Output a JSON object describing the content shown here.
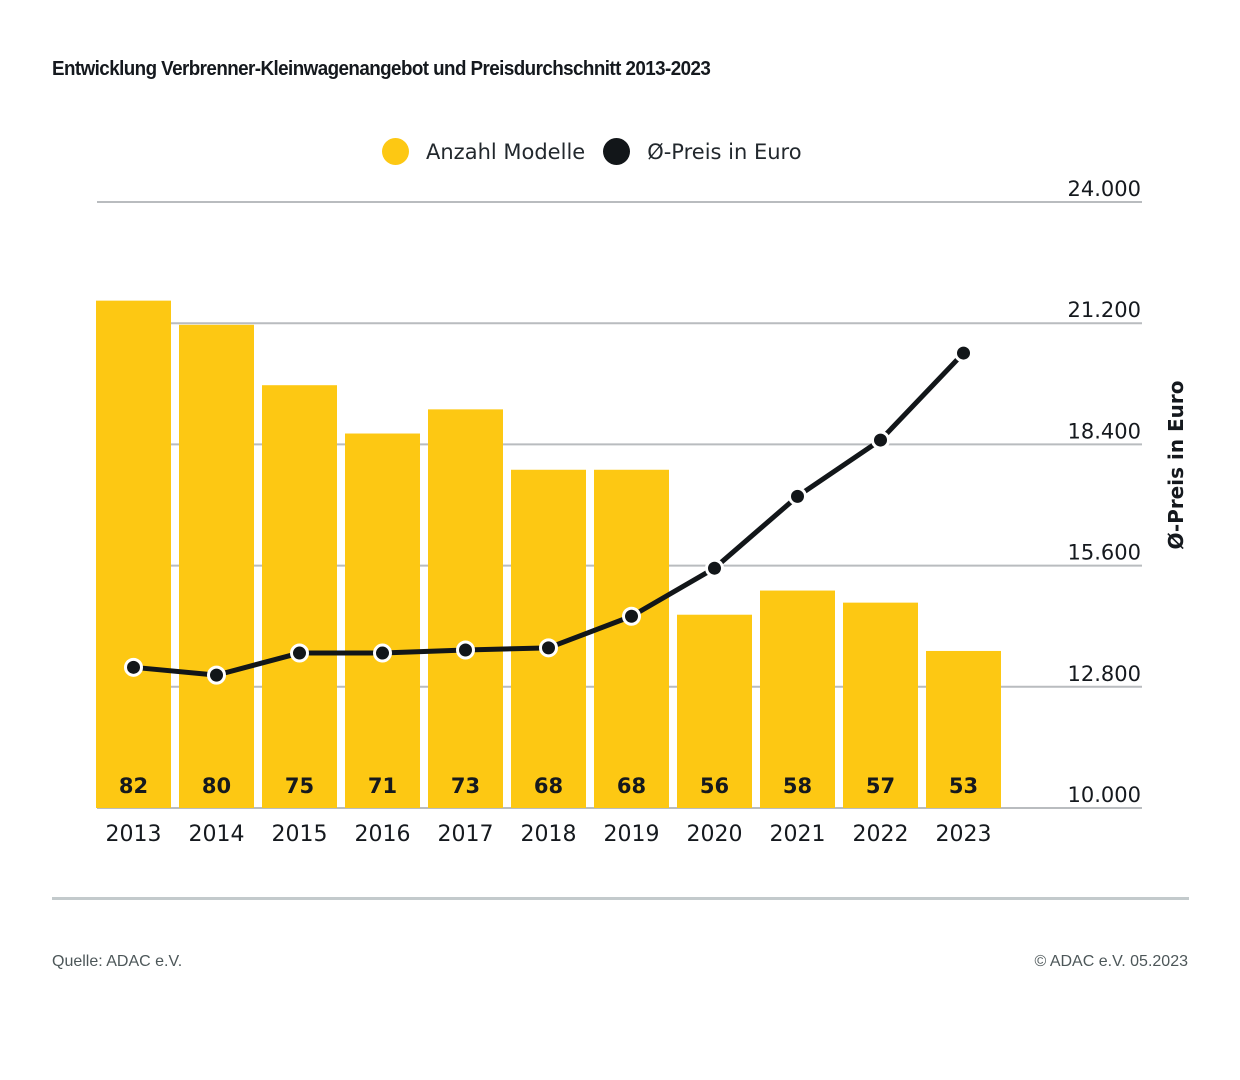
{
  "chart_data": {
    "type": "bar",
    "title": "Entwicklung Verbrenner-Kleinwagenangebot und Preisdurchschnitt 2013-2023",
    "categories": [
      "2013",
      "2014",
      "2015",
      "2016",
      "2017",
      "2018",
      "2019",
      "2020",
      "2021",
      "2022",
      "2023"
    ],
    "series": [
      {
        "name": "Anzahl Modelle",
        "type": "bar",
        "color": "#fdc813",
        "values": [
          82,
          80,
          75,
          71,
          73,
          68,
          68,
          56,
          58,
          57,
          53
        ],
        "data_labels": [
          "82",
          "80",
          "75",
          "71",
          "73",
          "68",
          "68",
          "56",
          "58",
          "57",
          "53"
        ]
      },
      {
        "name": "Ø-Preis in Euro",
        "type": "line",
        "color": "#121619",
        "axis": "right",
        "values": [
          13250,
          13070,
          13580,
          13580,
          13650,
          13700,
          14430,
          15540,
          17200,
          18500,
          20510
        ]
      }
    ],
    "y_right": {
      "label": "Ø-Preis in Euro",
      "range": [
        10000,
        24000
      ],
      "ticks": [
        10000,
        12800,
        15600,
        18400,
        21200,
        24000
      ],
      "tick_labels": [
        "10.000",
        "12.800",
        "15.600",
        "18.400",
        "21.200",
        "24.000"
      ]
    },
    "bar_axis_range": [
      40,
      90
    ],
    "grid": true,
    "legend_position": "top-center",
    "xlabel": "",
    "ylabel": "Ø-Preis in Euro"
  },
  "legend": [
    {
      "label": "Anzahl Modelle",
      "color": "#fdc813"
    },
    {
      "label": "Ø-Preis in Euro",
      "color": "#121619"
    }
  ],
  "footer": {
    "source": "Quelle: ADAC e.V.",
    "copyright": "© ADAC e.V. 05.2023"
  }
}
